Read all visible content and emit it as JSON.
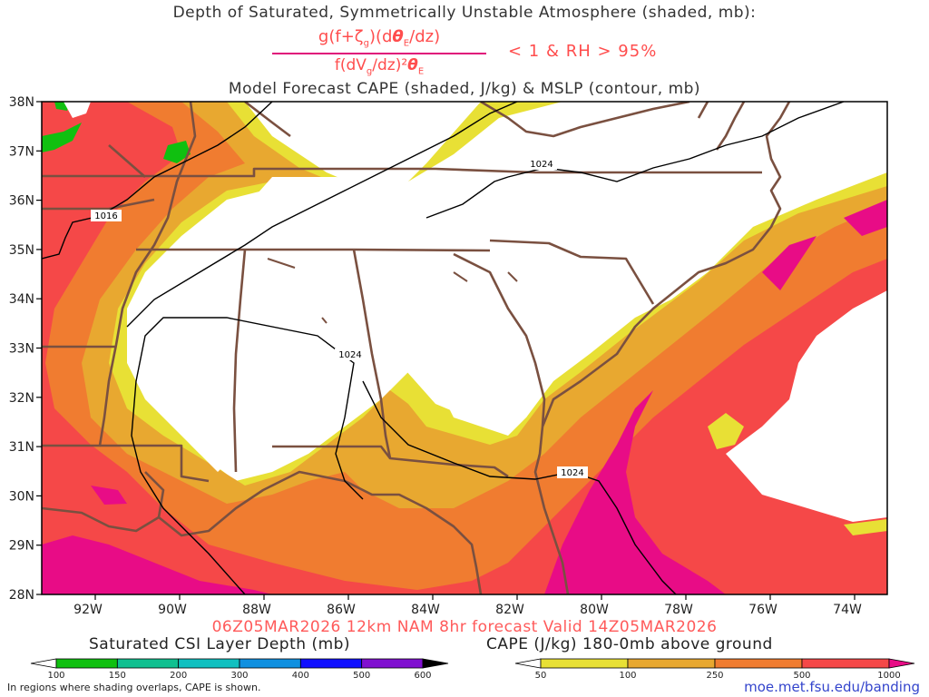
{
  "title": {
    "line1": "Depth of Saturated, Symmetrically Unstable Atmosphere (shaded, mb):",
    "equation_numerator": "g(f+ζg)(dθE/dz)",
    "equation_denominator": "f(dVg/dz)²θE",
    "criterion": "< 1 & RH > 95%",
    "line3": "Model Forecast CAPE (shaded, J/kg) & MSLP (contour, mb)"
  },
  "valid_time": "06Z05MAR2026 12km NAM 8hr forecast Valid 14Z05MAR2026",
  "map": {
    "lat_labels": [
      "38N",
      "37N",
      "36N",
      "35N",
      "34N",
      "33N",
      "32N",
      "31N",
      "30N",
      "29N",
      "28N"
    ],
    "lon_labels": [
      "92W",
      "90W",
      "88W",
      "86W",
      "84W",
      "82W",
      "80W",
      "78W",
      "76W",
      "74W"
    ],
    "isobar_labels": [
      "1016",
      "1024",
      "1024",
      "1024"
    ],
    "colors": {
      "cape_50": "#e8e035",
      "cape_100": "#e8a830",
      "cape_250": "#f07c30",
      "cape_500": "#f54848",
      "cape_1000": "#e80c86",
      "csi_100": "#10c010",
      "border": "#7a5040",
      "isobar": "#000000"
    }
  },
  "colorbars": {
    "csi": {
      "title": "Saturated CSI Layer Depth (mb)",
      "ticks": [
        "100",
        "150",
        "200",
        "300",
        "400",
        "500",
        "600"
      ],
      "colors": [
        "#ffffff",
        "#10c010",
        "#10c090",
        "#10c0c0",
        "#1090e0",
        "#1010ff",
        "#8010d0",
        "#000000"
      ]
    },
    "cape": {
      "title": "CAPE (J/kg) 180-0mb above ground",
      "ticks": [
        "50",
        "100",
        "250",
        "500",
        "1000"
      ],
      "colors": [
        "#ffffff",
        "#e8e035",
        "#e8a830",
        "#f07c30",
        "#f54848",
        "#e80c86"
      ]
    }
  },
  "footnote": "In regions where shading overlaps, CAPE is shown.",
  "site": "moe.met.fsu.edu/banding"
}
